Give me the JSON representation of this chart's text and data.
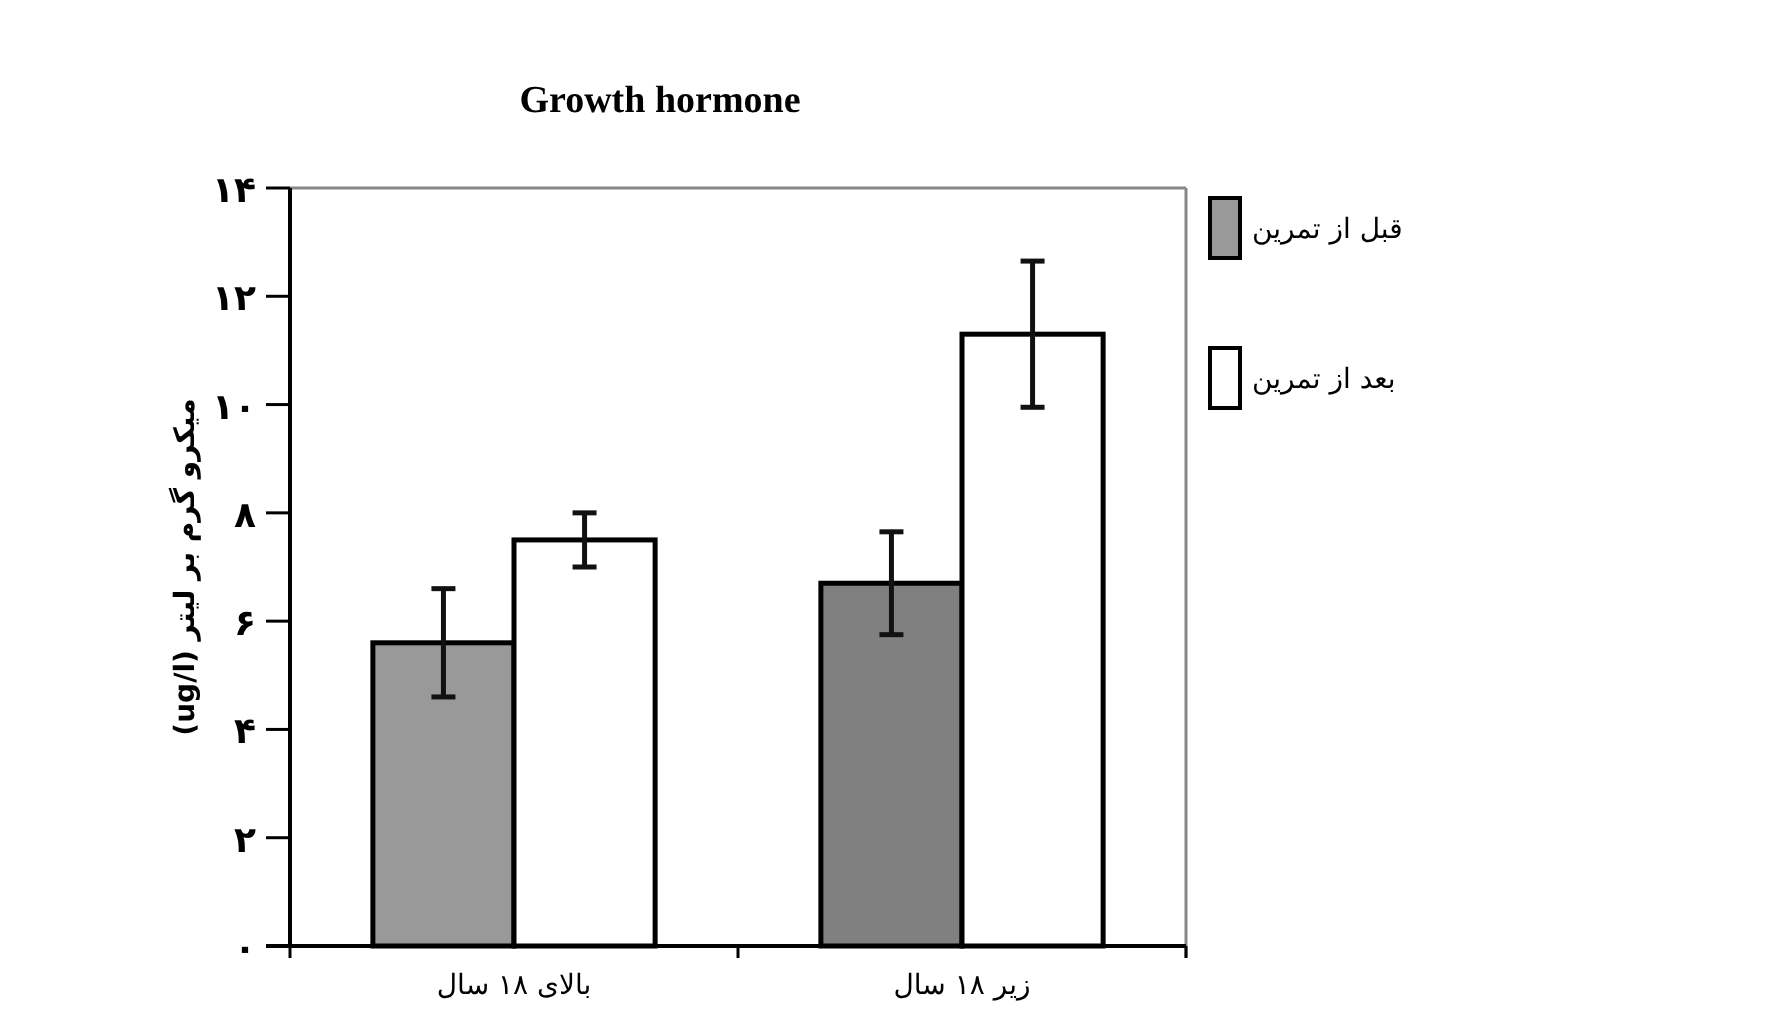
{
  "chart_data": {
    "type": "bar",
    "title": "Growth hormone",
    "ylabel": "میکرو گرم بر لیتر (ug/l)",
    "categories": [
      "بالای ۱۸ سال",
      "زیر ۱۸ سال"
    ],
    "series": [
      {
        "name": "قبل از تمرین",
        "color": "#999999",
        "colors": [
          "#999999",
          "#808080"
        ],
        "values": [
          5.6,
          6.7
        ],
        "errors": [
          1.0,
          0.95
        ]
      },
      {
        "name": "بعد از تمرین",
        "color": "#ffffff",
        "values": [
          7.5,
          11.3
        ],
        "errors": [
          0.5,
          1.35
        ]
      }
    ],
    "ylim": [
      0,
      14
    ],
    "yticks": [
      {
        "value": 0,
        "label": "۰"
      },
      {
        "value": 2,
        "label": "۲"
      },
      {
        "value": 4,
        "label": "۴"
      },
      {
        "value": 6,
        "label": "۶"
      },
      {
        "value": 8,
        "label": "۸"
      },
      {
        "value": 10,
        "label": "۱۰"
      },
      {
        "value": 12,
        "label": "۱۲"
      },
      {
        "value": 14,
        "label": "۱۴"
      }
    ],
    "legend": "right"
  }
}
